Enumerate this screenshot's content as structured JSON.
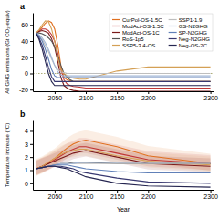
{
  "chart_data": [
    {
      "type": "line",
      "title": "a",
      "ylabel": "All GHG emissions (Gt CO₂-equiv)",
      "x": [
        2020,
        2025,
        2030,
        2035,
        2040,
        2045,
        2050,
        2055,
        2060,
        2065,
        2070,
        2075,
        2080,
        2090,
        2100,
        2150,
        2200,
        2300
      ],
      "xlim": [
        2015,
        2305
      ],
      "ylim": [
        -22,
        75
      ],
      "xticks": [
        2050,
        2100,
        2150,
        2200,
        2300
      ],
      "yticks": [
        -20,
        0,
        20,
        40,
        60
      ],
      "legend": "upper right",
      "series": [
        {
          "name": "CurPol-OS-1.5C",
          "color": "#E07020",
          "values": [
            50,
            53,
            57,
            62,
            65,
            63,
            55,
            35,
            10,
            -5,
            -8,
            -9,
            -10,
            -10,
            -10,
            -10,
            -10,
            -10
          ]
        },
        {
          "name": "ModAct-OS-1.5C",
          "color": "#C03535",
          "values": [
            50,
            52,
            55,
            55,
            53,
            48,
            40,
            25,
            5,
            -8,
            -13,
            -15,
            -16,
            -17,
            -18,
            -18,
            -18,
            -18
          ]
        },
        {
          "name": "ModAct-OS-1C",
          "color": "#7B1A1A",
          "values": [
            50,
            52,
            53,
            52,
            50,
            43,
            32,
            15,
            -5,
            -15,
            -18,
            -20,
            -21,
            -22,
            -22,
            -22,
            -22,
            -22
          ]
        },
        {
          "name": "RoS-1p5",
          "color": "#555555",
          "values": [
            50,
            50,
            49,
            47,
            44,
            40,
            33,
            22,
            10,
            0,
            -5,
            -8,
            -10,
            -10,
            -10,
            -10,
            -10,
            -10
          ]
        },
        {
          "name": "SSP5-3.4-OS",
          "color": "#D4A055",
          "values": [
            50,
            54,
            60,
            65,
            64,
            55,
            40,
            20,
            5,
            0,
            -3,
            -5,
            -6,
            -7,
            -7,
            3,
            8,
            8
          ]
        },
        {
          "name": "SSP1-1.9",
          "color": "#BEBEBE",
          "values": [
            50,
            47,
            42,
            35,
            27,
            18,
            10,
            5,
            2,
            1,
            0,
            0,
            0,
            0,
            0,
            0,
            0,
            0
          ]
        },
        {
          "name": "GS-N2GHG",
          "color": "#A0B5D5",
          "values": [
            50,
            48,
            44,
            38,
            30,
            20,
            10,
            2,
            -2,
            -3,
            -3,
            -3,
            -3,
            -3,
            -3,
            -3,
            -3,
            -3
          ]
        },
        {
          "name": "SP-N2GHG",
          "color": "#6080B8",
          "values": [
            50,
            46,
            40,
            30,
            18,
            5,
            -3,
            -5,
            -5,
            -5,
            -5,
            -5,
            -5,
            -5,
            -5,
            -5,
            -5,
            -5
          ]
        },
        {
          "name": "Neg-N2GHG",
          "color": "#383870",
          "values": [
            50,
            44,
            35,
            22,
            8,
            -4,
            -10,
            -10,
            -10,
            -10,
            -10,
            -10,
            -10,
            -10,
            -10,
            -10,
            -10,
            -10
          ]
        },
        {
          "name": "Neg-OS-2C",
          "color": "#252550",
          "values": [
            50,
            42,
            30,
            15,
            0,
            -10,
            -15,
            -15,
            -15,
            -15,
            -15,
            -15,
            -15,
            -15,
            -15,
            -15,
            -15,
            -15
          ]
        }
      ],
      "annotations": [
        {
          "type": "hline",
          "y": 0,
          "color": "#999955",
          "line_style": "dotted"
        }
      ]
    },
    {
      "type": "line",
      "title": "b",
      "xlabel": "Year",
      "ylabel": "Temperature increase (°C)",
      "x": [
        2020,
        2030,
        2040,
        2050,
        2060,
        2070,
        2080,
        2090,
        2100,
        2150,
        2200,
        2300
      ],
      "xlim": [
        2015,
        2305
      ],
      "ylim": [
        -0.5,
        4.8
      ],
      "xticks": [
        2050,
        2100,
        2150,
        2200,
        2300
      ],
      "yticks": [
        0,
        1,
        2,
        3,
        4
      ],
      "series": [
        {
          "color": "#E07020",
          "values": [
            1.1,
            1.3,
            1.6,
            1.9,
            2.3,
            2.7,
            3.0,
            3.2,
            3.3,
            2.8,
            2.1,
            1.5
          ],
          "lower": [
            0.55,
            0.75,
            1.05,
            1.35,
            1.75,
            2.15,
            2.45,
            2.65,
            2.75,
            2.25,
            1.55,
            0.95
          ],
          "upper": [
            1.85,
            2.05,
            2.35,
            2.65,
            3.05,
            3.45,
            3.75,
            3.95,
            4.05,
            3.55,
            2.85,
            2.25
          ]
        },
        {
          "color": "#C03535",
          "values": [
            1.1,
            1.3,
            1.5,
            1.8,
            2.1,
            2.4,
            2.6,
            2.8,
            2.8,
            2.3,
            1.8,
            1.5
          ],
          "lower": [
            0.6,
            0.8,
            1.0,
            1.3,
            1.6,
            1.9,
            2.1,
            2.3,
            2.3,
            1.8,
            1.3,
            1.0
          ],
          "upper": [
            1.75,
            1.95,
            2.15,
            2.45,
            2.75,
            3.05,
            3.25,
            3.45,
            3.45,
            2.95,
            2.45,
            2.15
          ]
        },
        {
          "color": "#7B1A1A",
          "values": [
            1.1,
            1.3,
            1.5,
            1.7,
            1.9,
            2.1,
            2.3,
            2.4,
            2.5,
            2.0,
            1.5,
            1.3
          ],
          "lower": [
            0.65,
            0.85,
            1.05,
            1.25,
            1.45,
            1.65,
            1.85,
            1.95,
            2.05,
            1.55,
            1.05,
            0.85
          ],
          "upper": [
            1.7,
            1.9,
            2.1,
            2.3,
            2.5,
            2.7,
            2.9,
            3.0,
            3.1,
            2.6,
            2.1,
            1.9
          ]
        },
        {
          "color": "#D4A055",
          "values": [
            1.1,
            1.3,
            1.6,
            1.9,
            2.2,
            2.4,
            2.5,
            2.6,
            2.6,
            2.1,
            1.7,
            1.4
          ],
          "lower": [
            0.6,
            0.8,
            1.1,
            1.4,
            1.7,
            1.9,
            2.0,
            2.1,
            2.1,
            1.6,
            1.2,
            0.9
          ],
          "upper": [
            1.75,
            1.95,
            2.25,
            2.55,
            2.85,
            3.05,
            3.15,
            3.25,
            3.25,
            2.75,
            2.35,
            2.05
          ]
        },
        {
          "color": "#555555",
          "values": [
            1.1,
            1.2,
            1.3,
            1.4,
            1.5,
            1.5,
            1.6,
            1.6,
            1.6,
            1.5,
            1.5,
            1.5
          ]
        },
        {
          "color": "#BEBEBE",
          "values": [
            1.1,
            1.2,
            1.3,
            1.4,
            1.5,
            1.5,
            1.5,
            1.5,
            1.5,
            1.5,
            1.5,
            1.5
          ]
        },
        {
          "color": "#A0B5D5",
          "values": [
            1.1,
            1.2,
            1.3,
            1.4,
            1.5,
            1.5,
            1.5,
            1.6,
            1.6,
            1.6,
            1.6,
            1.6
          ]
        },
        {
          "color": "#6080B8",
          "values": [
            1.1,
            1.2,
            1.3,
            1.4,
            1.4,
            1.4,
            1.3,
            1.2,
            1.1,
            0.9,
            0.8,
            0.8
          ]
        },
        {
          "color": "#383870",
          "values": [
            1.1,
            1.2,
            1.3,
            1.3,
            1.3,
            1.2,
            1.1,
            0.9,
            0.8,
            0.4,
            0.1,
            0.0
          ]
        },
        {
          "color": "#252550",
          "values": [
            1.1,
            1.2,
            1.3,
            1.3,
            1.2,
            1.1,
            0.9,
            0.7,
            0.5,
            0.0,
            -0.2,
            -0.3
          ]
        }
      ]
    }
  ]
}
